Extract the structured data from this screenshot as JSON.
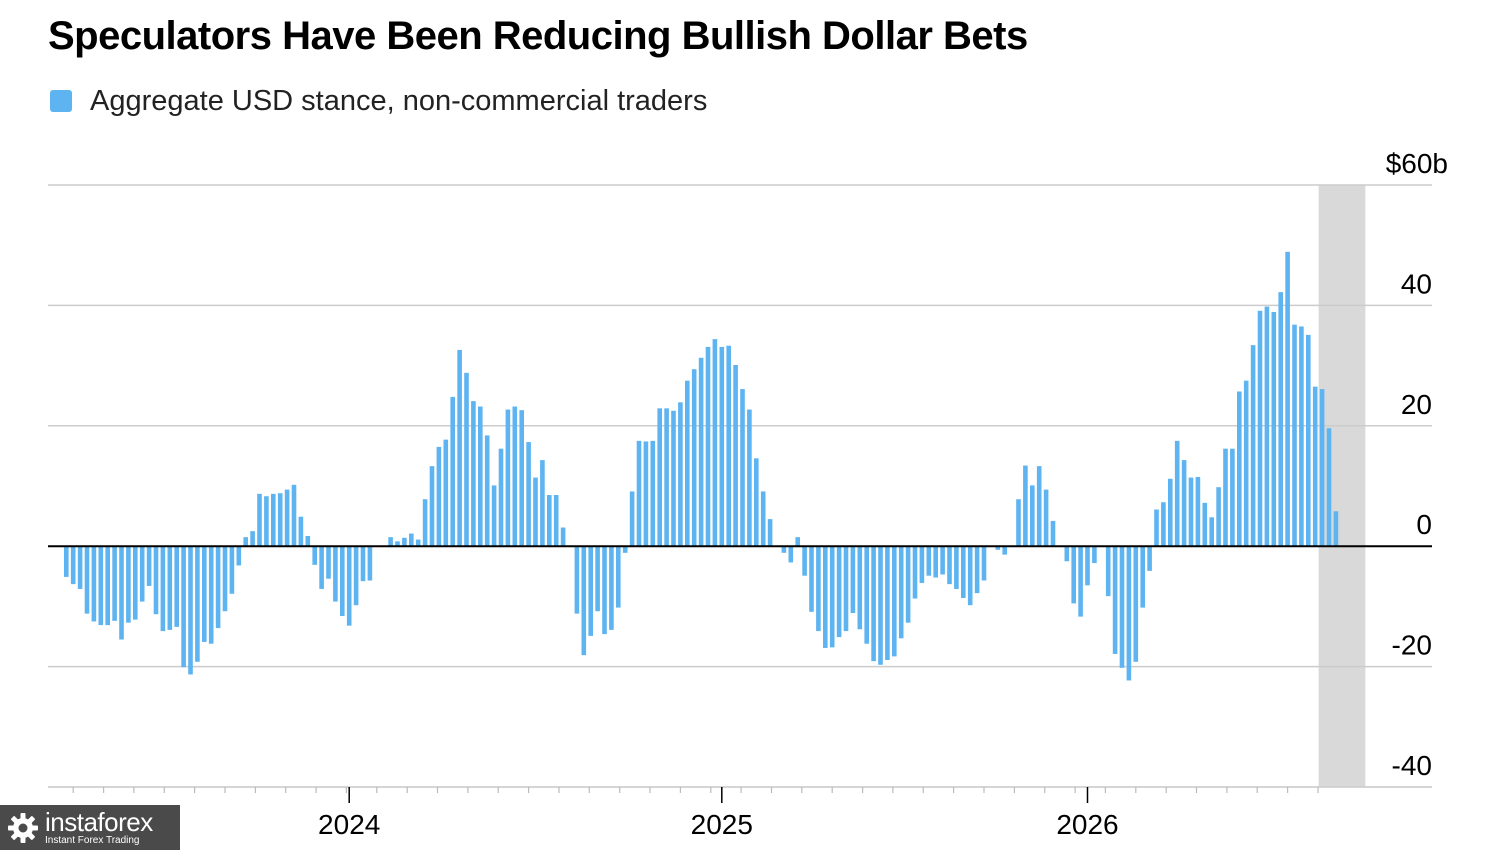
{
  "colors": {
    "bar": "#5eb4f0",
    "gridline": "#cccccc",
    "zero_line": "#000000",
    "highlight": "#d9d9d9",
    "axis_text": "#000000",
    "watermark_bg": "#4a4a4a"
  },
  "chart_data": {
    "type": "bar",
    "title": "Speculators Have Been Reducing Bullish Dollar Bets",
    "legend": [
      {
        "label": "Aggregate USD stance, non-commercial traders",
        "color": "#5eb4f0"
      }
    ],
    "legend_position": "top-left",
    "y_axis": {
      "position": "right",
      "range": [
        -40,
        60
      ],
      "ticks": [
        60,
        40,
        20,
        0,
        -20,
        -40
      ],
      "tick_labels": [
        "$60b",
        "40",
        "20",
        "0",
        "-20",
        "-40"
      ],
      "unit": "billions USD"
    },
    "x_axis": {
      "tick_labels": [
        {
          "label": "2024",
          "week": 41
        },
        {
          "label": "2025",
          "week": 95
        },
        {
          "label": "2026",
          "week": 148
        }
      ]
    },
    "grid": true,
    "highlight_band": {
      "from_week": 182,
      "to_week": 188
    },
    "series": [
      {
        "name": "Aggregate USD stance, non-commercial traders",
        "values": [
          -5.1,
          -6.3,
          -7.1,
          -11.2,
          -12.5,
          -13.1,
          -13.1,
          -12.4,
          -15.5,
          -12.7,
          -12.2,
          -9.2,
          -6.6,
          -11.3,
          -14.1,
          -13.9,
          -13.4,
          -20.1,
          -21.3,
          -19.2,
          -15.9,
          -16.2,
          -13.6,
          -10.8,
          -7.9,
          -3.2,
          1.5,
          2.5,
          8.7,
          8.3,
          8.7,
          8.8,
          9.4,
          10.2,
          4.9,
          1.7,
          -3.1,
          -7.1,
          -5.4,
          -9.2,
          -11.6,
          -13.2,
          -9.8,
          -5.8,
          -5.7,
          0,
          0,
          1.5,
          0.8,
          1.4,
          2.1,
          1.1,
          7.8,
          13.3,
          16.5,
          17.7,
          24.8,
          32.6,
          28.8,
          24.1,
          23.2,
          18.4,
          10.1,
          16.2,
          22.7,
          23.2,
          22.6,
          17.3,
          11.4,
          14.3,
          8.5,
          8.5,
          3.1,
          0,
          -11.2,
          -18.1,
          -14.9,
          -10.8,
          -14.6,
          -13.9,
          -10.2,
          -1.1,
          9.1,
          17.5,
          17.4,
          17.5,
          22.9,
          22.9,
          22.5,
          23.9,
          27.5,
          29.4,
          31.3,
          33.1,
          34.4,
          33.1,
          33.3,
          30.1,
          26.1,
          22.7,
          14.6,
          9.1,
          4.5,
          0,
          -1.1,
          -2.7,
          1.5,
          -4.9,
          -10.9,
          -14.1,
          -16.9,
          -16.8,
          -15.1,
          -14.1,
          -11.1,
          -13.8,
          -16.2,
          -19.1,
          -19.7,
          -18.9,
          -18.3,
          -15.3,
          -12.7,
          -8.7,
          -6.1,
          -4.9,
          -5.2,
          -4.7,
          -6.3,
          -7.1,
          -8.6,
          -9.8,
          -7.8,
          -5.7,
          0,
          -0.6,
          -1.4,
          0,
          7.8,
          13.4,
          10.1,
          13.3,
          9.4,
          4.2,
          0,
          -2.5,
          -9.5,
          -11.7,
          -6.5,
          -2.8,
          0,
          -8.3,
          -17.9,
          -20.2,
          -22.3,
          -19.2,
          -10.2,
          -4.1,
          6.1,
          7.3,
          11.2,
          17.5,
          14.3,
          11.4,
          11.5,
          7.2,
          4.8,
          9.8,
          16.2,
          16.2,
          25.7,
          27.5,
          33.4,
          39.1,
          39.8,
          38.9,
          42.2,
          48.9,
          36.8,
          36.5,
          35.1,
          26.5,
          26.1,
          19.6,
          5.8
        ]
      }
    ]
  },
  "watermark": {
    "brand": "instaforex",
    "tagline": "Instant Forex Trading",
    "icon": "gear-icon"
  }
}
